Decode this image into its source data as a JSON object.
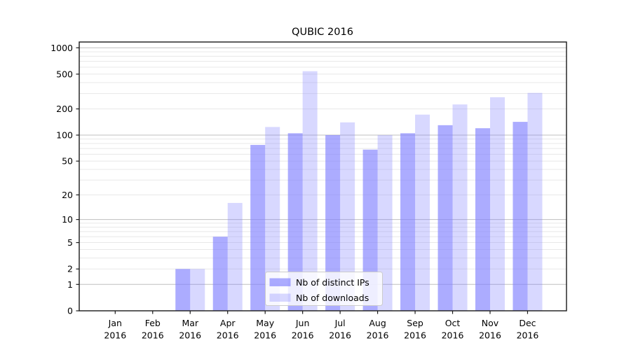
{
  "chart_data": {
    "type": "bar",
    "title": "QUBIC 2016",
    "categories": [
      "Jan",
      "Feb",
      "Mar",
      "Apr",
      "May",
      "Jun",
      "Jul",
      "Aug",
      "Sep",
      "Oct",
      "Nov",
      "Dec"
    ],
    "year": "2016",
    "series": [
      {
        "name": "Nb of distinct IPs",
        "color": "rgba(127,127,255,0.65)",
        "values": [
          0,
          0,
          2,
          6,
          77,
          105,
          100,
          68,
          105,
          130,
          120,
          142
        ]
      },
      {
        "name": "Nb of downloads",
        "color": "rgba(127,127,255,0.30)",
        "values": [
          0,
          0,
          2,
          16,
          124,
          540,
          140,
          100,
          172,
          225,
          272,
          305
        ]
      }
    ],
    "xlabel": "",
    "ylabel": "",
    "yscale": "symlog (position proportional to ln(1+v))",
    "yticks": [
      0,
      1,
      2,
      5,
      10,
      20,
      50,
      100,
      200,
      500,
      1000
    ],
    "ylim": [
      0,
      1164
    ],
    "grid": "horizontal, major decades darker + minor 2-9 per decade lighter",
    "legend_position": "inside lower-center",
    "colors": {
      "major_grid": "#bfbfbf",
      "minor_grid": "#e8e8e8",
      "axis": "#1a1a1a",
      "legend_border": "#cccccc",
      "legend_background": "rgba(255,255,255,0.8)"
    }
  }
}
